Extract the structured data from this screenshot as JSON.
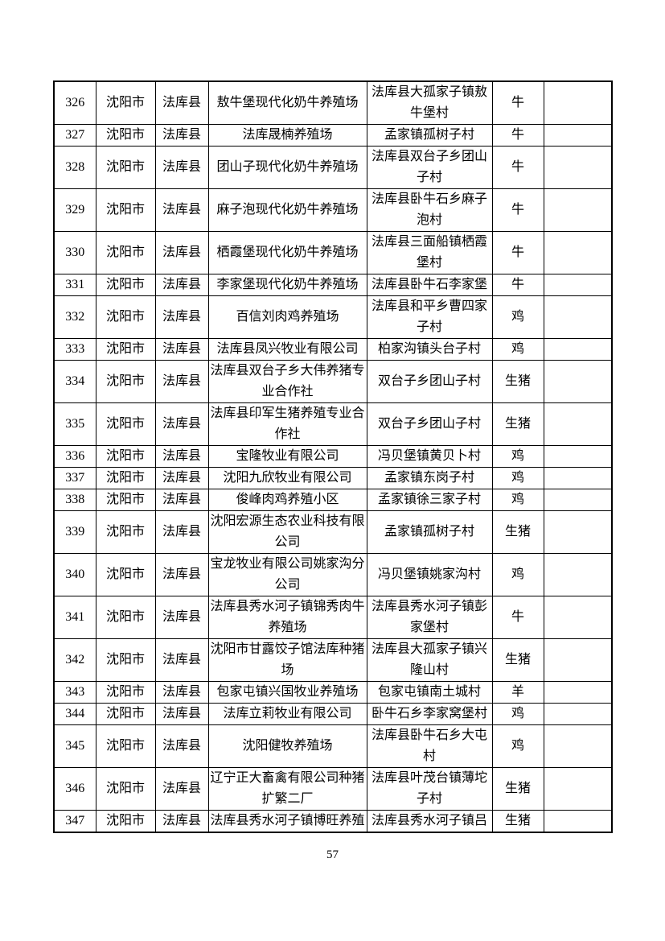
{
  "document": {
    "page_number": "57",
    "table": {
      "rows": [
        {
          "no": "326",
          "city": "沈阳市",
          "county": "法库县",
          "name": "敖牛堡现代化奶牛养殖场",
          "address": "法库县大孤家子镇敖牛堡村",
          "animal": "牛",
          "extra": ""
        },
        {
          "no": "327",
          "city": "沈阳市",
          "county": "法库县",
          "name": "法库晟楠养殖场",
          "address": "孟家镇孤树子村",
          "animal": "牛",
          "extra": ""
        },
        {
          "no": "328",
          "city": "沈阳市",
          "county": "法库县",
          "name": "团山子现代化奶牛养殖场",
          "address": "法库县双台子乡团山子村",
          "animal": "牛",
          "extra": ""
        },
        {
          "no": "329",
          "city": "沈阳市",
          "county": "法库县",
          "name": "麻子泡现代化奶牛养殖场",
          "address": "法库县卧牛石乡麻子泡村",
          "animal": "牛",
          "extra": ""
        },
        {
          "no": "330",
          "city": "沈阳市",
          "county": "法库县",
          "name": "栖霞堡现代化奶牛养殖场",
          "address": "法库县三面船镇栖霞堡村",
          "animal": "牛",
          "extra": ""
        },
        {
          "no": "331",
          "city": "沈阳市",
          "county": "法库县",
          "name": "李家堡现代化奶牛养殖场",
          "address": "法库县卧牛石李家堡",
          "animal": "牛",
          "extra": ""
        },
        {
          "no": "332",
          "city": "沈阳市",
          "county": "法库县",
          "name": "百信刘肉鸡养殖场",
          "address": "法库县和平乡曹四家子村",
          "animal": "鸡",
          "extra": ""
        },
        {
          "no": "333",
          "city": "沈阳市",
          "county": "法库县",
          "name": "法库县凤兴牧业有限公司",
          "address": "柏家沟镇头台子村",
          "animal": "鸡",
          "extra": ""
        },
        {
          "no": "334",
          "city": "沈阳市",
          "county": "法库县",
          "name": "法库县双台子乡大伟养猪专业合作社",
          "address": "双台子乡团山子村",
          "animal": "生猪",
          "extra": ""
        },
        {
          "no": "335",
          "city": "沈阳市",
          "county": "法库县",
          "name": "法库县印军生猪养殖专业合作社",
          "address": "双台子乡团山子村",
          "animal": "生猪",
          "extra": ""
        },
        {
          "no": "336",
          "city": "沈阳市",
          "county": "法库县",
          "name": "宝隆牧业有限公司",
          "address": "冯贝堡镇黄贝卜村",
          "animal": "鸡",
          "extra": ""
        },
        {
          "no": "337",
          "city": "沈阳市",
          "county": "法库县",
          "name": "沈阳九欣牧业有限公司",
          "address": "孟家镇东岗子村",
          "animal": "鸡",
          "extra": ""
        },
        {
          "no": "338",
          "city": "沈阳市",
          "county": "法库县",
          "name": "俊峰肉鸡养殖小区",
          "address": "孟家镇徐三家子村",
          "animal": "鸡",
          "extra": ""
        },
        {
          "no": "339",
          "city": "沈阳市",
          "county": "法库县",
          "name": "沈阳宏源生态农业科技有限公司",
          "address": "孟家镇孤树子村",
          "animal": "生猪",
          "extra": ""
        },
        {
          "no": "340",
          "city": "沈阳市",
          "county": "法库县",
          "name": "宝龙牧业有限公司姚家沟分公司",
          "address": "冯贝堡镇姚家沟村",
          "animal": "鸡",
          "extra": ""
        },
        {
          "no": "341",
          "city": "沈阳市",
          "county": "法库县",
          "name": "法库县秀水河子镇锦秀肉牛养殖场",
          "address": "法库县秀水河子镇彭家堡村",
          "animal": "牛",
          "extra": ""
        },
        {
          "no": "342",
          "city": "沈阳市",
          "county": "法库县",
          "name": "沈阳市甘露饺子馆法库种猪场",
          "address": "法库县大孤家子镇兴隆山村",
          "animal": "生猪",
          "extra": ""
        },
        {
          "no": "343",
          "city": "沈阳市",
          "county": "法库县",
          "name": "包家屯镇兴国牧业养殖场",
          "address": "包家屯镇南土城村",
          "animal": "羊",
          "extra": ""
        },
        {
          "no": "344",
          "city": "沈阳市",
          "county": "法库县",
          "name": "法库立莉牧业有限公司",
          "address": "卧牛石乡李家窝堡村",
          "animal": "鸡",
          "extra": ""
        },
        {
          "no": "345",
          "city": "沈阳市",
          "county": "法库县",
          "name": "沈阳健牧养殖场",
          "address": "法库县卧牛石乡大屯村",
          "animal": "鸡",
          "extra": ""
        },
        {
          "no": "346",
          "city": "沈阳市",
          "county": "法库县",
          "name": "辽宁正大畜禽有限公司种猪扩繁二厂",
          "address": "法库县叶茂台镇薄坨子村",
          "animal": "生猪",
          "extra": ""
        },
        {
          "no": "347",
          "city": "沈阳市",
          "county": "法库县",
          "name": "法库县秀水河子镇博旺养殖",
          "address": "法库县秀水河子镇吕",
          "animal": "生猪",
          "extra": ""
        }
      ]
    }
  }
}
